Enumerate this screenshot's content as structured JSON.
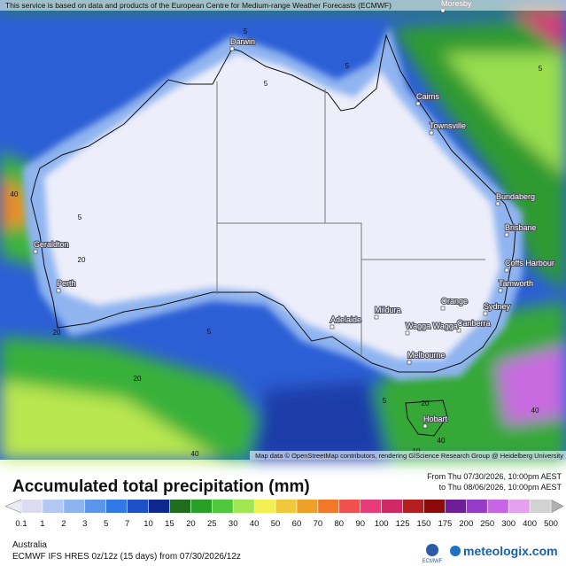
{
  "header": {
    "attribution": "This service is based on data and products of the European Centre for Medium-range Weather Forecasts (ECMWF)"
  },
  "map": {
    "cities": [
      "Moresby",
      "Darwin",
      "Cairns",
      "Townsville",
      "Bundaberg",
      "Brisbane",
      "Coffs Harbour",
      "Tamworth",
      "Orange",
      "Sydney",
      "Mildura",
      "Canberra",
      "Wagga Wagga",
      "Adelaide",
      "Melbourne",
      "Hobart",
      "Geraldton",
      "Perth"
    ],
    "contour_labels": [
      "5",
      "5",
      "5",
      "5",
      "5",
      "5",
      "20",
      "20",
      "20",
      "40",
      "40",
      "40",
      "10",
      "20",
      "5",
      "40"
    ],
    "credit": "Map data © OpenStreetMap contributors, rendering GIScience Research Group @ Heidelberg University"
  },
  "legend": {
    "title": "Accumulated total precipitation (mm)",
    "period_from": "From Thu 07/30/2026, 10:00pm AEST",
    "period_to": "to Thu 08/06/2026, 10:00pm AEST",
    "ticks": [
      0.1,
      1,
      2,
      3,
      5,
      7,
      10,
      15,
      20,
      25,
      30,
      40,
      50,
      60,
      70,
      80,
      90,
      100,
      125,
      150,
      175,
      200,
      250,
      300,
      400,
      500
    ],
    "colors": [
      "#dcdcf0",
      "#b4c8f5",
      "#8cb4f0",
      "#5a96eb",
      "#3278e6",
      "#1e50c8",
      "#0f2890",
      "#1e6e1e",
      "#28a028",
      "#50c83c",
      "#a0e650",
      "#f0f050",
      "#f0c83c",
      "#f0a028",
      "#f07828",
      "#f05050",
      "#e63c78",
      "#d22864",
      "#b41e1e",
      "#8c0a0a",
      "#6e1e96",
      "#963cc8",
      "#c864e6",
      "#e6a0f0",
      "#d2d2d2"
    ],
    "low_color": "#ececf6",
    "high_color": "#b0b0b0"
  },
  "footer": {
    "region": "Australia",
    "model": "ECMWF IFS HRES 0z/12z (15 days) from 07/30/2026/12z",
    "logo_ecmwf": "ECMWF",
    "site": "meteologix.com"
  }
}
